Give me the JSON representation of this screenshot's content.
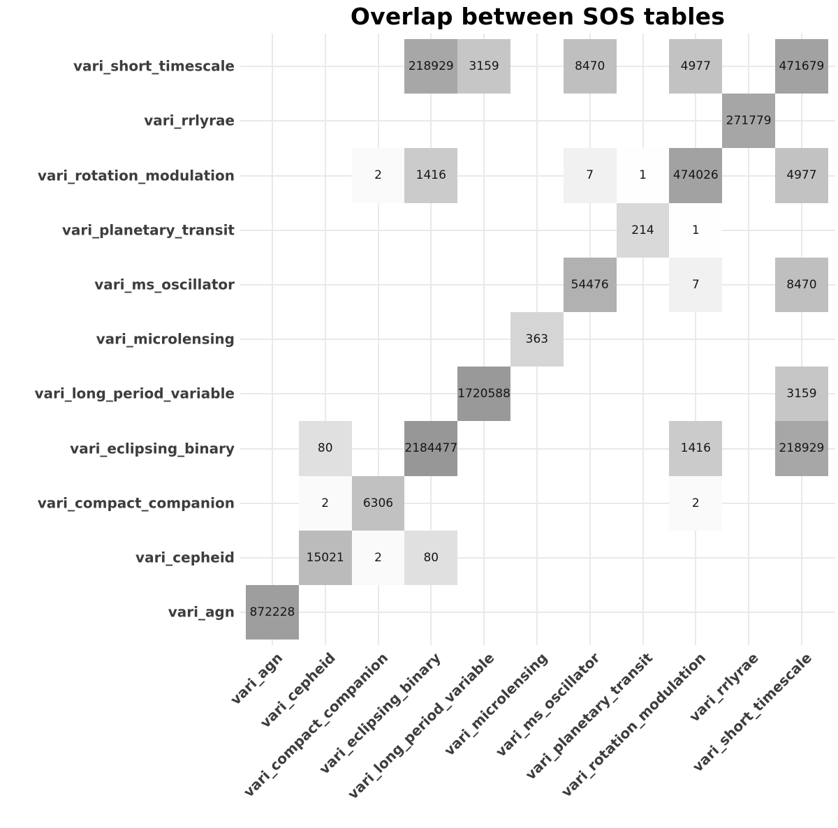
{
  "chart_data": {
    "type": "heatmap",
    "title": "Overlap between SOS tables",
    "xlabel": "",
    "ylabel": "",
    "grid": true,
    "legend": "none",
    "x_label_angle": 45,
    "y_axis_direction": "bottom_to_top",
    "categories": [
      "vari_agn",
      "vari_cepheid",
      "vari_compact_companion",
      "vari_eclipsing_binary",
      "vari_long_period_variable",
      "vari_microlensing",
      "vari_ms_oscillator",
      "vari_planetary_transit",
      "vari_rotation_modulation",
      "vari_rrlyrae",
      "vari_short_timescale"
    ],
    "color_scale": {
      "low_color": "#ffffff",
      "high_color": "#979797",
      "transform": "log10",
      "domain": [
        1,
        2184477
      ]
    },
    "colors": {
      "panel_background": "#ffffff",
      "gridline": "#e9e9e9",
      "axis_text": "#3d3d3d",
      "value_text": "#151515",
      "title_text": "#000000"
    },
    "cells": [
      {
        "y": "vari_short_timescale",
        "x": "vari_eclipsing_binary",
        "value": 218929,
        "fill": "#a7a7a7"
      },
      {
        "y": "vari_short_timescale",
        "x": "vari_long_period_variable",
        "value": 3159,
        "fill": "#c6c6c6"
      },
      {
        "y": "vari_short_timescale",
        "x": "vari_ms_oscillator",
        "value": 8470,
        "fill": "#bfbfbf"
      },
      {
        "y": "vari_short_timescale",
        "x": "vari_rotation_modulation",
        "value": 4977,
        "fill": "#c2c2c2"
      },
      {
        "y": "vari_short_timescale",
        "x": "vari_short_timescale",
        "value": 471679,
        "fill": "#a2a2a2"
      },
      {
        "y": "vari_rrlyrae",
        "x": "vari_rrlyrae",
        "value": 271779,
        "fill": "#a6a6a6"
      },
      {
        "y": "vari_rotation_modulation",
        "x": "vari_compact_companion",
        "value": 2,
        "fill": "#fafafa"
      },
      {
        "y": "vari_rotation_modulation",
        "x": "vari_eclipsing_binary",
        "value": 1416,
        "fill": "#cbcbcb"
      },
      {
        "y": "vari_rotation_modulation",
        "x": "vari_ms_oscillator",
        "value": 7,
        "fill": "#f1f1f1"
      },
      {
        "y": "vari_rotation_modulation",
        "x": "vari_planetary_transit",
        "value": 1,
        "fill": "#fefefe"
      },
      {
        "y": "vari_rotation_modulation",
        "x": "vari_rotation_modulation",
        "value": 474026,
        "fill": "#a2a2a2"
      },
      {
        "y": "vari_rotation_modulation",
        "x": "vari_short_timescale",
        "value": 4977,
        "fill": "#c2c2c2"
      },
      {
        "y": "vari_planetary_transit",
        "x": "vari_planetary_transit",
        "value": 214,
        "fill": "#d9d9d9"
      },
      {
        "y": "vari_planetary_transit",
        "x": "vari_rotation_modulation",
        "value": 1,
        "fill": "#fefefe"
      },
      {
        "y": "vari_ms_oscillator",
        "x": "vari_ms_oscillator",
        "value": 54476,
        "fill": "#b1b1b1"
      },
      {
        "y": "vari_ms_oscillator",
        "x": "vari_rotation_modulation",
        "value": 7,
        "fill": "#f1f1f1"
      },
      {
        "y": "vari_ms_oscillator",
        "x": "vari_short_timescale",
        "value": 8470,
        "fill": "#bfbfbf"
      },
      {
        "y": "vari_microlensing",
        "x": "vari_microlensing",
        "value": 363,
        "fill": "#d5d5d5"
      },
      {
        "y": "vari_long_period_variable",
        "x": "vari_long_period_variable",
        "value": 1720588,
        "fill": "#999999"
      },
      {
        "y": "vari_long_period_variable",
        "x": "vari_short_timescale",
        "value": 3159,
        "fill": "#c6c6c6"
      },
      {
        "y": "vari_eclipsing_binary",
        "x": "vari_cepheid",
        "value": 80,
        "fill": "#e0e0e0"
      },
      {
        "y": "vari_eclipsing_binary",
        "x": "vari_eclipsing_binary",
        "value": 2184477,
        "fill": "#979797"
      },
      {
        "y": "vari_eclipsing_binary",
        "x": "vari_rotation_modulation",
        "value": 1416,
        "fill": "#cbcbcb"
      },
      {
        "y": "vari_eclipsing_binary",
        "x": "vari_short_timescale",
        "value": 218929,
        "fill": "#a7a7a7"
      },
      {
        "y": "vari_compact_companion",
        "x": "vari_cepheid",
        "value": 2,
        "fill": "#fafafa"
      },
      {
        "y": "vari_compact_companion",
        "x": "vari_compact_companion",
        "value": 6306,
        "fill": "#c1c1c1"
      },
      {
        "y": "vari_compact_companion",
        "x": "vari_rotation_modulation",
        "value": 2,
        "fill": "#fafafa"
      },
      {
        "y": "vari_cepheid",
        "x": "vari_cepheid",
        "value": 15021,
        "fill": "#bbbbbb"
      },
      {
        "y": "vari_cepheid",
        "x": "vari_compact_companion",
        "value": 2,
        "fill": "#fafafa"
      },
      {
        "y": "vari_cepheid",
        "x": "vari_eclipsing_binary",
        "value": 80,
        "fill": "#e0e0e0"
      },
      {
        "y": "vari_agn",
        "x": "vari_agn",
        "value": 872228,
        "fill": "#9e9e9e"
      }
    ]
  }
}
